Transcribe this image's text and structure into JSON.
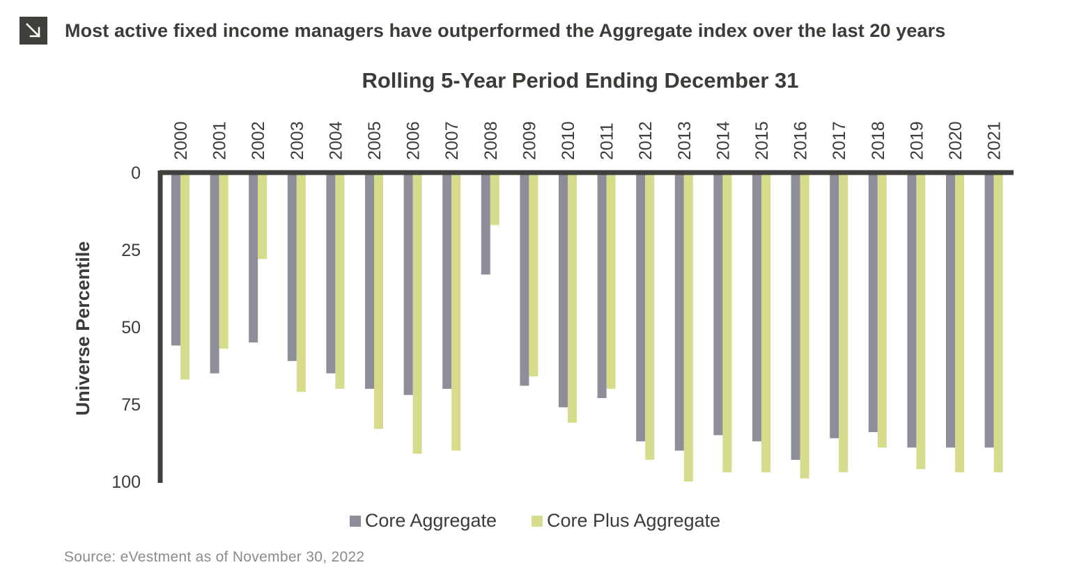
{
  "header": {
    "icon": "arrow-down-right-icon",
    "headline": "Most active fixed income managers have outperformed the Aggregate index over the last 20 years"
  },
  "source": "Source: eVestment as of November 30, 2022",
  "colors": {
    "core": "#8d8e99",
    "core_plus": "#d7dc8c",
    "axis": "#3f3f3b",
    "text": "#3b3b38"
  },
  "chart_data": {
    "type": "bar",
    "title": "Rolling 5-Year Period Ending December 31",
    "ylabel": "Universe Percentile",
    "xlabel": "",
    "ylim": [
      0,
      100
    ],
    "y_inverted": true,
    "y_ticks": [
      0,
      25,
      50,
      75,
      100
    ],
    "x_axis_position": "top",
    "legend_position": "bottom",
    "grid": false,
    "categories": [
      "2000",
      "2001",
      "2002",
      "2003",
      "2004",
      "2005",
      "2006",
      "2007",
      "2008",
      "2009",
      "2010",
      "2011",
      "2012",
      "2013",
      "2014",
      "2015",
      "2016",
      "2017",
      "2018",
      "2019",
      "2020",
      "2021"
    ],
    "series": [
      {
        "name": "Core Aggregate",
        "color": "#8d8e99",
        "values": [
          56,
          65,
          55,
          61,
          65,
          70,
          72,
          70,
          33,
          69,
          76,
          73,
          87,
          90,
          85,
          87,
          93,
          86,
          84,
          89,
          89,
          89
        ]
      },
      {
        "name": "Core Plus Aggregate",
        "color": "#d7dc8c",
        "values": [
          67,
          57,
          28,
          71,
          70,
          83,
          91,
          90,
          17,
          66,
          81,
          70,
          93,
          100,
          97,
          97,
          99,
          97,
          89,
          96,
          97,
          97
        ]
      }
    ]
  }
}
